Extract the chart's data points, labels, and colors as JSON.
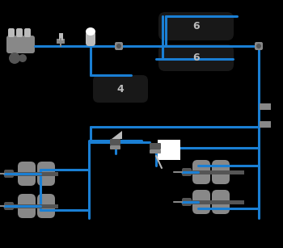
{
  "bg_color": "#000000",
  "blue": "#1a7fd4",
  "gray": "#888888",
  "dark_gray": "#555555",
  "light_gray": "#bbbbbb",
  "white": "#ffffff",
  "black_box": "#181818",
  "label_color": "#cccccc",
  "label_6a": "6",
  "label_6b": "6",
  "label_4": "4",
  "font_size": 9,
  "pipe_lw": 2.2
}
